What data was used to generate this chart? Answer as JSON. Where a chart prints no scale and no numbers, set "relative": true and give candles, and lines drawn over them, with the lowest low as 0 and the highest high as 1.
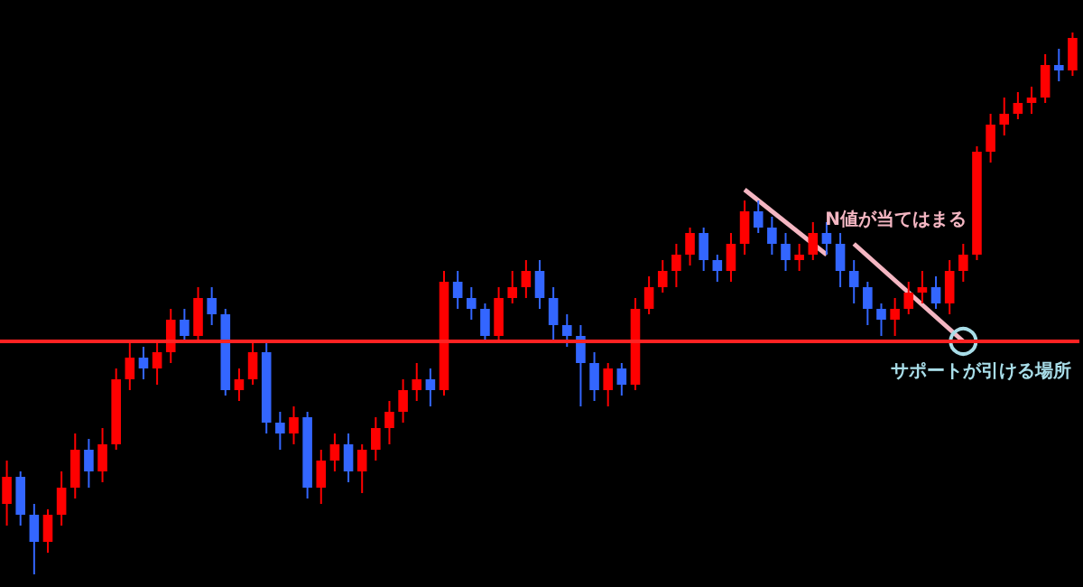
{
  "chart_data": {
    "type": "candlestick",
    "relative": true,
    "categories": [
      null,
      null,
      null,
      null,
      null,
      null,
      null,
      null,
      null,
      null,
      null,
      null,
      null,
      null,
      null,
      null,
      null,
      null,
      null,
      null,
      null,
      null,
      null,
      null,
      null,
      null,
      null,
      null,
      null,
      null,
      null,
      null,
      null,
      null,
      null,
      null,
      null,
      null,
      null,
      null,
      null,
      null,
      null,
      null,
      null,
      null,
      null,
      null,
      null,
      null,
      null,
      null,
      null,
      null,
      null,
      null,
      null,
      null,
      null,
      null,
      null,
      null,
      null,
      null,
      null,
      null,
      null,
      null,
      null,
      null,
      null,
      null,
      null,
      null,
      null,
      null,
      null,
      null,
      null
    ],
    "ohlc": [
      [
        0.13,
        0.21,
        0.09,
        0.18
      ],
      [
        0.18,
        0.19,
        0.09,
        0.11
      ],
      [
        0.11,
        0.13,
        0,
        0.06
      ],
      [
        0.06,
        0.12,
        0.04,
        0.11
      ],
      [
        0.11,
        0.19,
        0.09,
        0.16
      ],
      [
        0.16,
        0.26,
        0.14,
        0.23
      ],
      [
        0.23,
        0.25,
        0.16,
        0.19
      ],
      [
        0.19,
        0.27,
        0.17,
        0.24
      ],
      [
        0.24,
        0.38,
        0.23,
        0.36
      ],
      [
        0.36,
        0.43,
        0.34,
        0.4
      ],
      [
        0.4,
        0.42,
        0.36,
        0.38
      ],
      [
        0.38,
        0.43,
        0.35,
        0.41
      ],
      [
        0.41,
        0.49,
        0.39,
        0.47
      ],
      [
        0.47,
        0.49,
        0.43,
        0.44
      ],
      [
        0.44,
        0.53,
        0.43,
        0.51
      ],
      [
        0.51,
        0.53,
        0.46,
        0.48
      ],
      [
        0.48,
        0.49,
        0.33,
        0.34
      ],
      [
        0.34,
        0.38,
        0.32,
        0.36
      ],
      [
        0.36,
        0.43,
        0.35,
        0.41
      ],
      [
        0.41,
        0.43,
        0.26,
        0.28
      ],
      [
        0.28,
        0.3,
        0.23,
        0.26
      ],
      [
        0.26,
        0.31,
        0.24,
        0.29
      ],
      [
        0.29,
        0.3,
        0.14,
        0.16
      ],
      [
        0.16,
        0.23,
        0.13,
        0.21
      ],
      [
        0.21,
        0.26,
        0.19,
        0.24
      ],
      [
        0.24,
        0.26,
        0.17,
        0.19
      ],
      [
        0.19,
        0.24,
        0.15,
        0.23
      ],
      [
        0.23,
        0.29,
        0.21,
        0.27
      ],
      [
        0.27,
        0.32,
        0.24,
        0.3
      ],
      [
        0.3,
        0.36,
        0.28,
        0.34
      ],
      [
        0.34,
        0.39,
        0.32,
        0.36
      ],
      [
        0.36,
        0.38,
        0.31,
        0.34
      ],
      [
        0.34,
        0.56,
        0.33,
        0.54
      ],
      [
        0.54,
        0.56,
        0.49,
        0.51
      ],
      [
        0.51,
        0.53,
        0.47,
        0.49
      ],
      [
        0.49,
        0.5,
        0.43,
        0.44
      ],
      [
        0.44,
        0.53,
        0.43,
        0.51
      ],
      [
        0.51,
        0.56,
        0.5,
        0.53
      ],
      [
        0.53,
        0.58,
        0.51,
        0.56
      ],
      [
        0.56,
        0.58,
        0.49,
        0.51
      ],
      [
        0.51,
        0.53,
        0.43,
        0.46
      ],
      [
        0.46,
        0.48,
        0.42,
        0.44
      ],
      [
        0.44,
        0.46,
        0.31,
        0.39
      ],
      [
        0.39,
        0.41,
        0.32,
        0.34
      ],
      [
        0.34,
        0.39,
        0.31,
        0.38
      ],
      [
        0.38,
        0.39,
        0.33,
        0.35
      ],
      [
        0.35,
        0.51,
        0.34,
        0.49
      ],
      [
        0.49,
        0.55,
        0.48,
        0.53
      ],
      [
        0.53,
        0.58,
        0.52,
        0.56
      ],
      [
        0.56,
        0.61,
        0.53,
        0.59
      ],
      [
        0.59,
        0.64,
        0.57,
        0.63
      ],
      [
        0.63,
        0.64,
        0.56,
        0.58
      ],
      [
        0.58,
        0.59,
        0.54,
        0.56
      ],
      [
        0.56,
        0.63,
        0.54,
        0.61
      ],
      [
        0.61,
        0.69,
        0.59,
        0.67
      ],
      [
        0.67,
        0.69,
        0.63,
        0.64
      ],
      [
        0.64,
        0.66,
        0.59,
        0.61
      ],
      [
        0.61,
        0.63,
        0.56,
        0.58
      ],
      [
        0.58,
        0.61,
        0.56,
        0.59
      ],
      [
        0.59,
        0.65,
        0.58,
        0.63
      ],
      [
        0.63,
        0.65,
        0.59,
        0.61
      ],
      [
        0.61,
        0.63,
        0.53,
        0.56
      ],
      [
        0.56,
        0.58,
        0.5,
        0.53
      ],
      [
        0.53,
        0.54,
        0.46,
        0.49
      ],
      [
        0.49,
        0.5,
        0.44,
        0.47
      ],
      [
        0.47,
        0.51,
        0.44,
        0.49
      ],
      [
        0.49,
        0.54,
        0.48,
        0.52
      ],
      [
        0.52,
        0.56,
        0.5,
        0.53
      ],
      [
        0.53,
        0.55,
        0.49,
        0.5
      ],
      [
        0.5,
        0.58,
        0.48,
        0.56
      ],
      [
        0.56,
        0.61,
        0.54,
        0.59
      ],
      [
        0.59,
        0.79,
        0.58,
        0.78
      ],
      [
        0.78,
        0.85,
        0.76,
        0.83
      ],
      [
        0.83,
        0.88,
        0.81,
        0.85
      ],
      [
        0.85,
        0.89,
        0.84,
        0.87
      ],
      [
        0.87,
        0.9,
        0.85,
        0.88
      ],
      [
        0.88,
        0.96,
        0.87,
        0.94
      ],
      [
        0.94,
        0.97,
        0.91,
        0.93
      ],
      [
        0.93,
        1,
        0.92,
        0.99
      ]
    ],
    "colors": [
      "#ff0000",
      "#3366ff",
      "#3366ff",
      "#ff0000",
      "#ff0000",
      "#ff0000",
      "#3366ff",
      "#ff0000",
      "#ff0000",
      "#ff0000",
      "#3366ff",
      "#ff0000",
      "#ff0000",
      "#3366ff",
      "#ff0000",
      "#3366ff",
      "#3366ff",
      "#ff0000",
      "#ff0000",
      "#3366ff",
      "#3366ff",
      "#ff0000",
      "#3366ff",
      "#ff0000",
      "#ff0000",
      "#3366ff",
      "#ff0000",
      "#ff0000",
      "#ff0000",
      "#ff0000",
      "#ff0000",
      "#3366ff",
      "#ff0000",
      "#3366ff",
      "#3366ff",
      "#3366ff",
      "#ff0000",
      "#ff0000",
      "#ff0000",
      "#3366ff",
      "#3366ff",
      "#3366ff",
      "#3366ff",
      "#3366ff",
      "#ff0000",
      "#3366ff",
      "#ff0000",
      "#ff0000",
      "#ff0000",
      "#ff0000",
      "#ff0000",
      "#3366ff",
      "#3366ff",
      "#ff0000",
      "#ff0000",
      "#3366ff",
      "#3366ff",
      "#3366ff",
      "#ff0000",
      "#ff0000",
      "#3366ff",
      "#3366ff",
      "#3366ff",
      "#3366ff",
      "#3366ff",
      "#ff0000",
      "#ff0000",
      "#ff0000",
      "#3366ff",
      "#ff0000",
      "#ff0000",
      "#ff0000",
      "#ff0000",
      "#ff0000",
      "#ff0000",
      "#ff0000",
      "#ff0000",
      "#3366ff",
      "#ff0000"
    ],
    "ref_lines": [
      {
        "axis": "y",
        "value": 0.43,
        "color": "#ff2222"
      }
    ],
    "annotations": [
      "N値が当てはまる",
      "サポートが引ける場所"
    ]
  }
}
